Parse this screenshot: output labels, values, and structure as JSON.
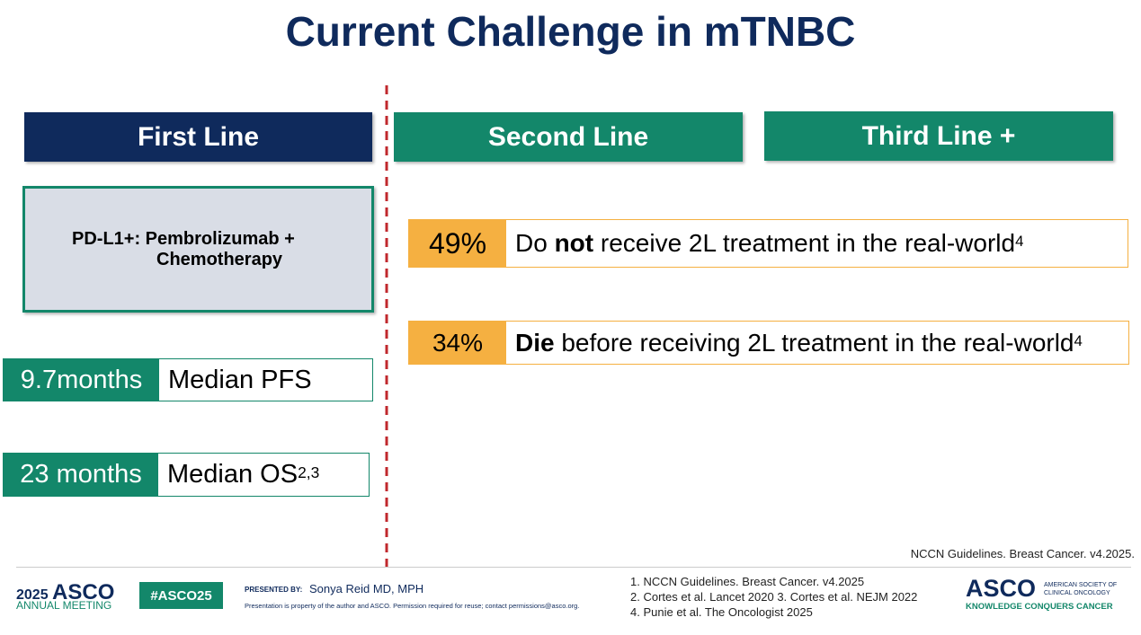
{
  "title": "Current Challenge in mTNBC",
  "columns": [
    "First Line",
    "Second Line",
    "Third Line +"
  ],
  "first_line": {
    "regimen": [
      "PD-L1+: Pembrolizumab +",
      "Chemotherapy"
    ],
    "stats": [
      {
        "value": "9.7months",
        "label": "Median PFS"
      },
      {
        "value": "23 months",
        "label": "Median OS",
        "sup": "2,3"
      }
    ]
  },
  "second_line": {
    "stats": [
      {
        "value": "49%",
        "text": [
          "Do ",
          "not",
          " receive 2L treatment in the real-world"
        ],
        "sup": "4"
      },
      {
        "value": "34%",
        "text": [
          "Die",
          " before receiving 2L treatment in the real-world"
        ],
        "sup": "4"
      }
    ]
  },
  "source": "NCCN Guidelines. Breast Cancer. v4.2025.",
  "footer": {
    "meeting_year": "2025",
    "meeting_org": "ASCO",
    "meeting_name": "ANNUAL MEETING",
    "hashtag": "#ASCO25",
    "presented_by_label": "PRESENTED BY:",
    "presenter": "Sonya Reid MD, MPH",
    "notice": "Presentation is property of the author and ASCO. Permission required for reuse; contact permissions@asco.org.",
    "references": [
      "1. NCCN Guidelines. Breast Cancer. v4.2025",
      "2. Cortes et al. Lancet 2020 3. Cortes et al. NEJM 2022",
      "4. Punie et al. The Oncologist 2025"
    ],
    "logo_org": "ASCO",
    "logo_line1": "AMERICAN SOCIETY OF",
    "logo_line2": "CLINICAL ONCOLOGY",
    "tagline": "KNOWLEDGE CONQUERS CANCER"
  }
}
